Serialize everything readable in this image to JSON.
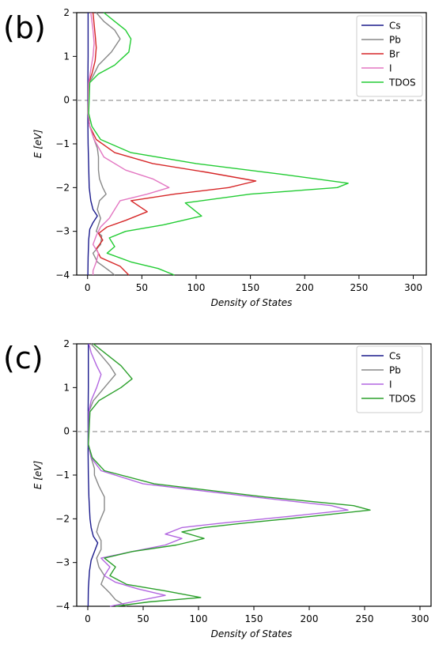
{
  "chart_data": [
    {
      "type": "line",
      "panel_label": "(b)",
      "xlabel": "Density of States",
      "ylabel": "E [eV]",
      "xlim": [
        -10,
        312
      ],
      "ylim": [
        -4,
        2
      ],
      "xticks": [
        "0",
        "50",
        "100",
        "150",
        "200",
        "250",
        "300"
      ],
      "yticks": [
        "-4",
        "-3",
        "-2",
        "-1",
        "0",
        "1",
        "2"
      ],
      "fermi_level": 0,
      "legend_position": "top-right",
      "grid": false,
      "series": [
        {
          "name": "Cs",
          "color": "#1a1a8c",
          "points": [
            [
              0.5,
              2
            ],
            [
              0.5,
              1
            ],
            [
              0.3,
              0.4
            ],
            [
              0.3,
              -0.5
            ],
            [
              0.5,
              -1
            ],
            [
              1,
              -1.5
            ],
            [
              1.5,
              -2
            ],
            [
              3,
              -2.3
            ],
            [
              5,
              -2.5
            ],
            [
              9,
              -2.65
            ],
            [
              5,
              -2.8
            ],
            [
              2,
              -2.95
            ],
            [
              1,
              -3.2
            ],
            [
              0.5,
              -3.6
            ],
            [
              0.3,
              -4
            ]
          ]
        },
        {
          "name": "Pb",
          "color": "#888888",
          "points": [
            [
              8,
              2
            ],
            [
              15,
              1.8
            ],
            [
              25,
              1.6
            ],
            [
              30,
              1.4
            ],
            [
              22,
              1.1
            ],
            [
              10,
              0.8
            ],
            [
              4,
              0.5
            ],
            [
              1,
              0.4
            ],
            [
              0.5,
              -0.3
            ],
            [
              2,
              -0.6
            ],
            [
              6,
              -0.9
            ],
            [
              9,
              -1.1
            ],
            [
              10,
              -1.3
            ],
            [
              10,
              -1.6
            ],
            [
              11,
              -1.8
            ],
            [
              14,
              -2
            ],
            [
              17,
              -2.15
            ],
            [
              11,
              -2.3
            ],
            [
              9,
              -2.5
            ],
            [
              12,
              -2.7
            ],
            [
              10,
              -2.85
            ],
            [
              8,
              -3
            ],
            [
              13,
              -3.1
            ],
            [
              12,
              -3.3
            ],
            [
              5,
              -3.5
            ],
            [
              9,
              -3.7
            ],
            [
              20,
              -3.9
            ],
            [
              25,
              -4
            ]
          ]
        },
        {
          "name": "Br",
          "color": "#d62728",
          "points": [
            [
              5,
              2
            ],
            [
              7,
              1.5
            ],
            [
              8,
              1.2
            ],
            [
              7,
              0.9
            ],
            [
              4,
              0.6
            ],
            [
              1,
              0.4
            ],
            [
              0.5,
              -0.3
            ],
            [
              2,
              -0.6
            ],
            [
              8,
              -0.9
            ],
            [
              25,
              -1.2
            ],
            [
              60,
              -1.45
            ],
            [
              110,
              -1.65
            ],
            [
              155,
              -1.85
            ],
            [
              130,
              -2
            ],
            [
              80,
              -2.15
            ],
            [
              40,
              -2.3
            ],
            [
              55,
              -2.55
            ],
            [
              35,
              -2.75
            ],
            [
              18,
              -2.9
            ],
            [
              10,
              -3.05
            ],
            [
              14,
              -3.2
            ],
            [
              8,
              -3.4
            ],
            [
              12,
              -3.6
            ],
            [
              30,
              -3.8
            ],
            [
              38,
              -4
            ]
          ]
        },
        {
          "name": "I",
          "color": "#e377c2",
          "points": [
            [
              3,
              2
            ],
            [
              5,
              1.6
            ],
            [
              6,
              1.3
            ],
            [
              5,
              1
            ],
            [
              3,
              0.7
            ],
            [
              1,
              0.4
            ],
            [
              0.5,
              -0.3
            ],
            [
              2,
              -0.6
            ],
            [
              6,
              -0.9
            ],
            [
              15,
              -1.3
            ],
            [
              35,
              -1.6
            ],
            [
              60,
              -1.8
            ],
            [
              75,
              -2
            ],
            [
              55,
              -2.15
            ],
            [
              30,
              -2.3
            ],
            [
              25,
              -2.5
            ],
            [
              20,
              -2.7
            ],
            [
              12,
              -2.9
            ],
            [
              8,
              -3.1
            ],
            [
              5,
              -3.3
            ],
            [
              10,
              -3.5
            ],
            [
              8,
              -3.7
            ],
            [
              5,
              -3.9
            ],
            [
              5,
              -4
            ]
          ]
        },
        {
          "name": "TDOS",
          "color": "#22cc33",
          "points": [
            [
              15,
              2
            ],
            [
              25,
              1.8
            ],
            [
              35,
              1.6
            ],
            [
              40,
              1.4
            ],
            [
              38,
              1.1
            ],
            [
              25,
              0.8
            ],
            [
              10,
              0.6
            ],
            [
              2,
              0.4
            ],
            [
              1,
              -0.3
            ],
            [
              4,
              -0.6
            ],
            [
              12,
              -0.9
            ],
            [
              40,
              -1.2
            ],
            [
              100,
              -1.45
            ],
            [
              180,
              -1.7
            ],
            [
              240,
              -1.9
            ],
            [
              230,
              -2
            ],
            [
              150,
              -2.15
            ],
            [
              90,
              -2.35
            ],
            [
              105,
              -2.65
            ],
            [
              70,
              -2.85
            ],
            [
              35,
              -3
            ],
            [
              20,
              -3.15
            ],
            [
              25,
              -3.35
            ],
            [
              18,
              -3.5
            ],
            [
              40,
              -3.7
            ],
            [
              65,
              -3.85
            ],
            [
              80,
              -4
            ]
          ]
        }
      ]
    },
    {
      "type": "line",
      "panel_label": "(c)",
      "xlabel": "Density of States",
      "ylabel": "E [eV]",
      "xlim": [
        -10,
        310
      ],
      "ylim": [
        -4,
        2
      ],
      "xticks": [
        "0",
        "50",
        "100",
        "150",
        "200",
        "250",
        "300"
      ],
      "yticks": [
        "-4",
        "-3",
        "-2",
        "-1",
        "0",
        "1",
        "2"
      ],
      "fermi_level": 0,
      "legend_position": "top-right",
      "grid": false,
      "series": [
        {
          "name": "Cs",
          "color": "#1a1a8c",
          "points": [
            [
              0.5,
              2
            ],
            [
              0.5,
              1
            ],
            [
              0.3,
              0.4
            ],
            [
              0.3,
              -0.5
            ],
            [
              0.5,
              -1
            ],
            [
              1,
              -1.5
            ],
            [
              2,
              -2
            ],
            [
              3,
              -2.2
            ],
            [
              5,
              -2.4
            ],
            [
              9,
              -2.55
            ],
            [
              6,
              -2.75
            ],
            [
              3,
              -2.95
            ],
            [
              1.5,
              -3.2
            ],
            [
              0.5,
              -3.6
            ],
            [
              0.3,
              -4
            ]
          ]
        },
        {
          "name": "Pb",
          "color": "#888888",
          "points": [
            [
              3,
              2
            ],
            [
              10,
              1.8
            ],
            [
              20,
              1.5
            ],
            [
              25,
              1.3
            ],
            [
              15,
              1
            ],
            [
              5,
              0.7
            ],
            [
              1,
              0.45
            ],
            [
              0.5,
              -0.3
            ],
            [
              3,
              -0.6
            ],
            [
              6,
              -0.85
            ],
            [
              6,
              -1
            ],
            [
              10,
              -1.25
            ],
            [
              15,
              -1.5
            ],
            [
              15,
              -1.8
            ],
            [
              10,
              -2.1
            ],
            [
              8,
              -2.3
            ],
            [
              12,
              -2.5
            ],
            [
              12,
              -2.7
            ],
            [
              8,
              -2.9
            ],
            [
              10,
              -3.1
            ],
            [
              15,
              -3.3
            ],
            [
              12,
              -3.5
            ],
            [
              20,
              -3.7
            ],
            [
              25,
              -3.85
            ],
            [
              35,
              -4
            ]
          ]
        },
        {
          "name": "I",
          "color": "#b266e0",
          "points": [
            [
              1,
              2
            ],
            [
              3,
              1.8
            ],
            [
              8,
              1.5
            ],
            [
              12,
              1.3
            ],
            [
              8,
              1
            ],
            [
              3,
              0.7
            ],
            [
              1,
              0.45
            ],
            [
              0.5,
              -0.3
            ],
            [
              3,
              -0.6
            ],
            [
              12,
              -0.9
            ],
            [
              50,
              -1.2
            ],
            [
              150,
              -1.5
            ],
            [
              220,
              -1.7
            ],
            [
              235,
              -1.8
            ],
            [
              180,
              -1.95
            ],
            [
              120,
              -2.1
            ],
            [
              85,
              -2.2
            ],
            [
              70,
              -2.35
            ],
            [
              85,
              -2.45
            ],
            [
              70,
              -2.6
            ],
            [
              40,
              -2.75
            ],
            [
              12,
              -2.9
            ],
            [
              20,
              -3.1
            ],
            [
              15,
              -3.3
            ],
            [
              25,
              -3.45
            ],
            [
              45,
              -3.6
            ],
            [
              70,
              -3.75
            ],
            [
              40,
              -3.9
            ],
            [
              20,
              -4
            ]
          ]
        },
        {
          "name": "TDOS",
          "color": "#2ca02c",
          "points": [
            [
              5,
              2
            ],
            [
              15,
              1.8
            ],
            [
              30,
              1.5
            ],
            [
              40,
              1.2
            ],
            [
              30,
              1
            ],
            [
              10,
              0.7
            ],
            [
              2,
              0.45
            ],
            [
              0.5,
              -0.3
            ],
            [
              4,
              -0.6
            ],
            [
              15,
              -0.9
            ],
            [
              60,
              -1.2
            ],
            [
              160,
              -1.5
            ],
            [
              240,
              -1.7
            ],
            [
              255,
              -1.8
            ],
            [
              200,
              -1.95
            ],
            [
              140,
              -2.1
            ],
            [
              105,
              -2.2
            ],
            [
              85,
              -2.3
            ],
            [
              105,
              -2.45
            ],
            [
              80,
              -2.6
            ],
            [
              40,
              -2.75
            ],
            [
              15,
              -2.9
            ],
            [
              25,
              -3.1
            ],
            [
              20,
              -3.3
            ],
            [
              35,
              -3.5
            ],
            [
              70,
              -3.65
            ],
            [
              102,
              -3.8
            ],
            [
              55,
              -3.9
            ],
            [
              25,
              -4
            ]
          ]
        }
      ]
    }
  ]
}
